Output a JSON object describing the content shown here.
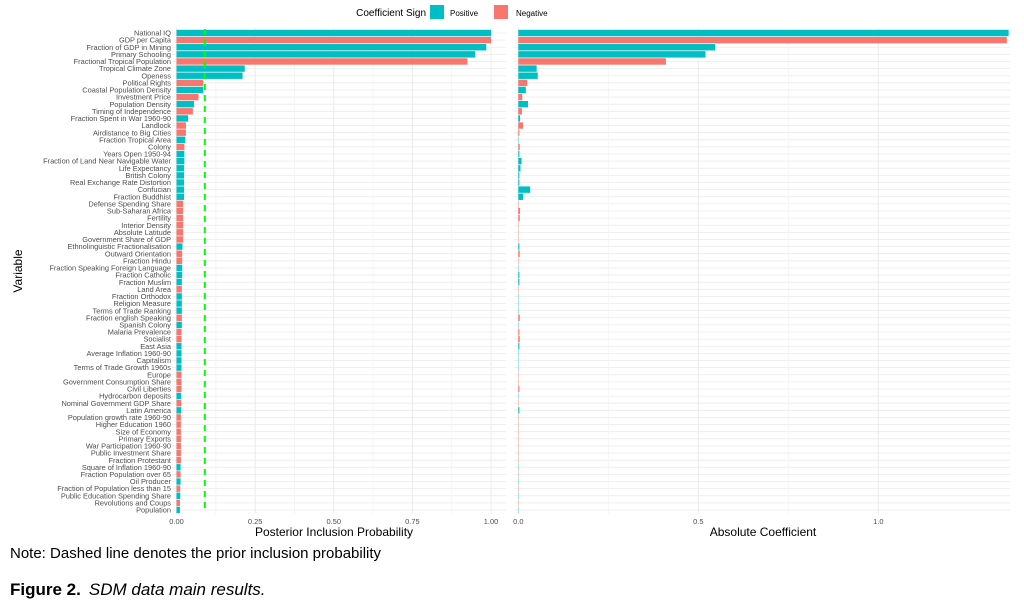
{
  "legend": {
    "title": "Coefficient Sign",
    "items": [
      {
        "label": "Positive",
        "color": "#00BFC4"
      },
      {
        "label": "Negative",
        "color": "#F8766D"
      }
    ],
    "position": "top"
  },
  "note": "Note: Dashed line denotes the prior inclusion probability",
  "caption": {
    "label": "Figure 2.",
    "text": "SDM data main results."
  },
  "chart_data": {
    "type": "bar",
    "orientation": "horizontal",
    "ylabel": "Variable",
    "grid": true,
    "categories": [
      "National IQ",
      "GDP per Capita",
      "Fraction of GDP in Mining",
      "Primary Schooling",
      "Fractional Tropical Population",
      "Tropical Climate Zone",
      "Openess",
      "Political Rights",
      "Coastal Population Density",
      "Investment Price",
      "Population Density",
      "Timing of Independence",
      "Fraction Spent in War 1960-90",
      "Landlock",
      "Airdistance to Big Cities",
      "Fraction Tropical Area",
      "Colony",
      "Years Open 1950-94",
      "Fraction of Land Near Navigable Water",
      "Life Expectancy",
      "British Colony",
      "Real Exchange Rate Distortion",
      "Confucian",
      "Fraction Buddhist",
      "Defense Spending Share",
      "Sub-Saharan Africa",
      "Fertility",
      "Interior Density",
      "Absolute Latitude",
      "Government Share of GDP",
      "Ethnolinguistic Fractionalisation",
      "Outward Orientation",
      "Fraction Hindu",
      "Fraction Speaking Foreign Language",
      "Fraction Catholic",
      "Fraction Muslim",
      "Land Area",
      "Fraction Orthodox",
      "Religion Measure",
      "Terms of Trade Ranking",
      "Fraction english Speaking",
      "Spanish Colony",
      "Malaria Prevalence",
      "Socialist",
      "East Asia",
      "Average Inflation 1960-90",
      "Capitalism",
      "Terms of Trade Growth 1960s",
      "Europe",
      "Government Consumption Share",
      "Civil Liberties",
      "Hydrocarbon deposits",
      "Nominal Government GDP Share",
      "Latin America",
      "Population growth rate 1960-90",
      "Higher Education 1960",
      "Size of Economy",
      "Primary Exports",
      "War Participation 1960-90",
      "Public Investment Share",
      "Fraction Protestant",
      "Square of Inflation 1960-90",
      "Fraction Population over 65",
      "Oil Producer",
      "Fraction of Population less than 15",
      "Public Education Spending Share",
      "Revolutions and Coups",
      "Population"
    ],
    "sign": [
      "Positive",
      "Negative",
      "Positive",
      "Positive",
      "Negative",
      "Positive",
      "Positive",
      "Negative",
      "Positive",
      "Negative",
      "Positive",
      "Negative",
      "Positive",
      "Negative",
      "Negative",
      "Positive",
      "Negative",
      "Positive",
      "Positive",
      "Positive",
      "Positive",
      "Positive",
      "Positive",
      "Positive",
      "Negative",
      "Negative",
      "Negative",
      "Negative",
      "Negative",
      "Negative",
      "Positive",
      "Negative",
      "Negative",
      "Positive",
      "Positive",
      "Positive",
      "Negative",
      "Positive",
      "Positive",
      "Positive",
      "Negative",
      "Positive",
      "Negative",
      "Negative",
      "Positive",
      "Positive",
      "Positive",
      "Positive",
      "Negative",
      "Negative",
      "Negative",
      "Positive",
      "Negative",
      "Positive",
      "Negative",
      "Negative",
      "Negative",
      "Negative",
      "Negative",
      "Negative",
      "Negative",
      "Positive",
      "Negative",
      "Positive",
      "Negative",
      "Positive",
      "Negative",
      "Positive"
    ],
    "panels": [
      {
        "xlabel": "Posterior Inclusion Probability",
        "xlim": [
          0,
          1.05
        ],
        "ticks": [
          "0.00",
          "0.25",
          "0.50",
          "0.75",
          "1.00"
        ],
        "tick_values": [
          0,
          0.25,
          0.5,
          0.75,
          1.0
        ],
        "prior_inclusion_probability": 0.09,
        "values": [
          1.0,
          1.0,
          0.985,
          0.95,
          0.925,
          0.217,
          0.21,
          0.085,
          0.085,
          0.07,
          0.056,
          0.052,
          0.037,
          0.03,
          0.03,
          0.028,
          0.025,
          0.025,
          0.025,
          0.024,
          0.024,
          0.024,
          0.024,
          0.024,
          0.021,
          0.021,
          0.021,
          0.021,
          0.021,
          0.021,
          0.019,
          0.018,
          0.018,
          0.018,
          0.018,
          0.017,
          0.017,
          0.017,
          0.017,
          0.017,
          0.017,
          0.017,
          0.016,
          0.016,
          0.016,
          0.016,
          0.016,
          0.016,
          0.016,
          0.016,
          0.016,
          0.015,
          0.015,
          0.015,
          0.014,
          0.014,
          0.014,
          0.014,
          0.014,
          0.014,
          0.014,
          0.013,
          0.013,
          0.013,
          0.012,
          0.012,
          0.011,
          0.011
        ]
      },
      {
        "xlabel": "Absolute Coefficient",
        "xlim": [
          0,
          1.37
        ],
        "ticks": [
          "0.0",
          "0.5",
          "1.0"
        ],
        "tick_values": [
          0,
          0.5,
          1.0
        ],
        "values": [
          1.362,
          1.357,
          0.547,
          0.52,
          0.41,
          0.051,
          0.054,
          0.025,
          0.021,
          0.011,
          0.027,
          0.01,
          0.005,
          0.013,
          0.003,
          0.001,
          0.004,
          0.003,
          0.009,
          0.006,
          0.003,
          0.003,
          0.033,
          0.013,
          0.001,
          0.005,
          0.004,
          0,
          0,
          0,
          0.003,
          0.004,
          0,
          0,
          0.003,
          0.003,
          0,
          0,
          0,
          0,
          0.004,
          0,
          0.003,
          0.004,
          0.003,
          0,
          0,
          0,
          0,
          0,
          0.003,
          0,
          0,
          0.003,
          0,
          0,
          0,
          0,
          0,
          0,
          0,
          0,
          0,
          0,
          0,
          0,
          0,
          0
        ]
      }
    ]
  }
}
